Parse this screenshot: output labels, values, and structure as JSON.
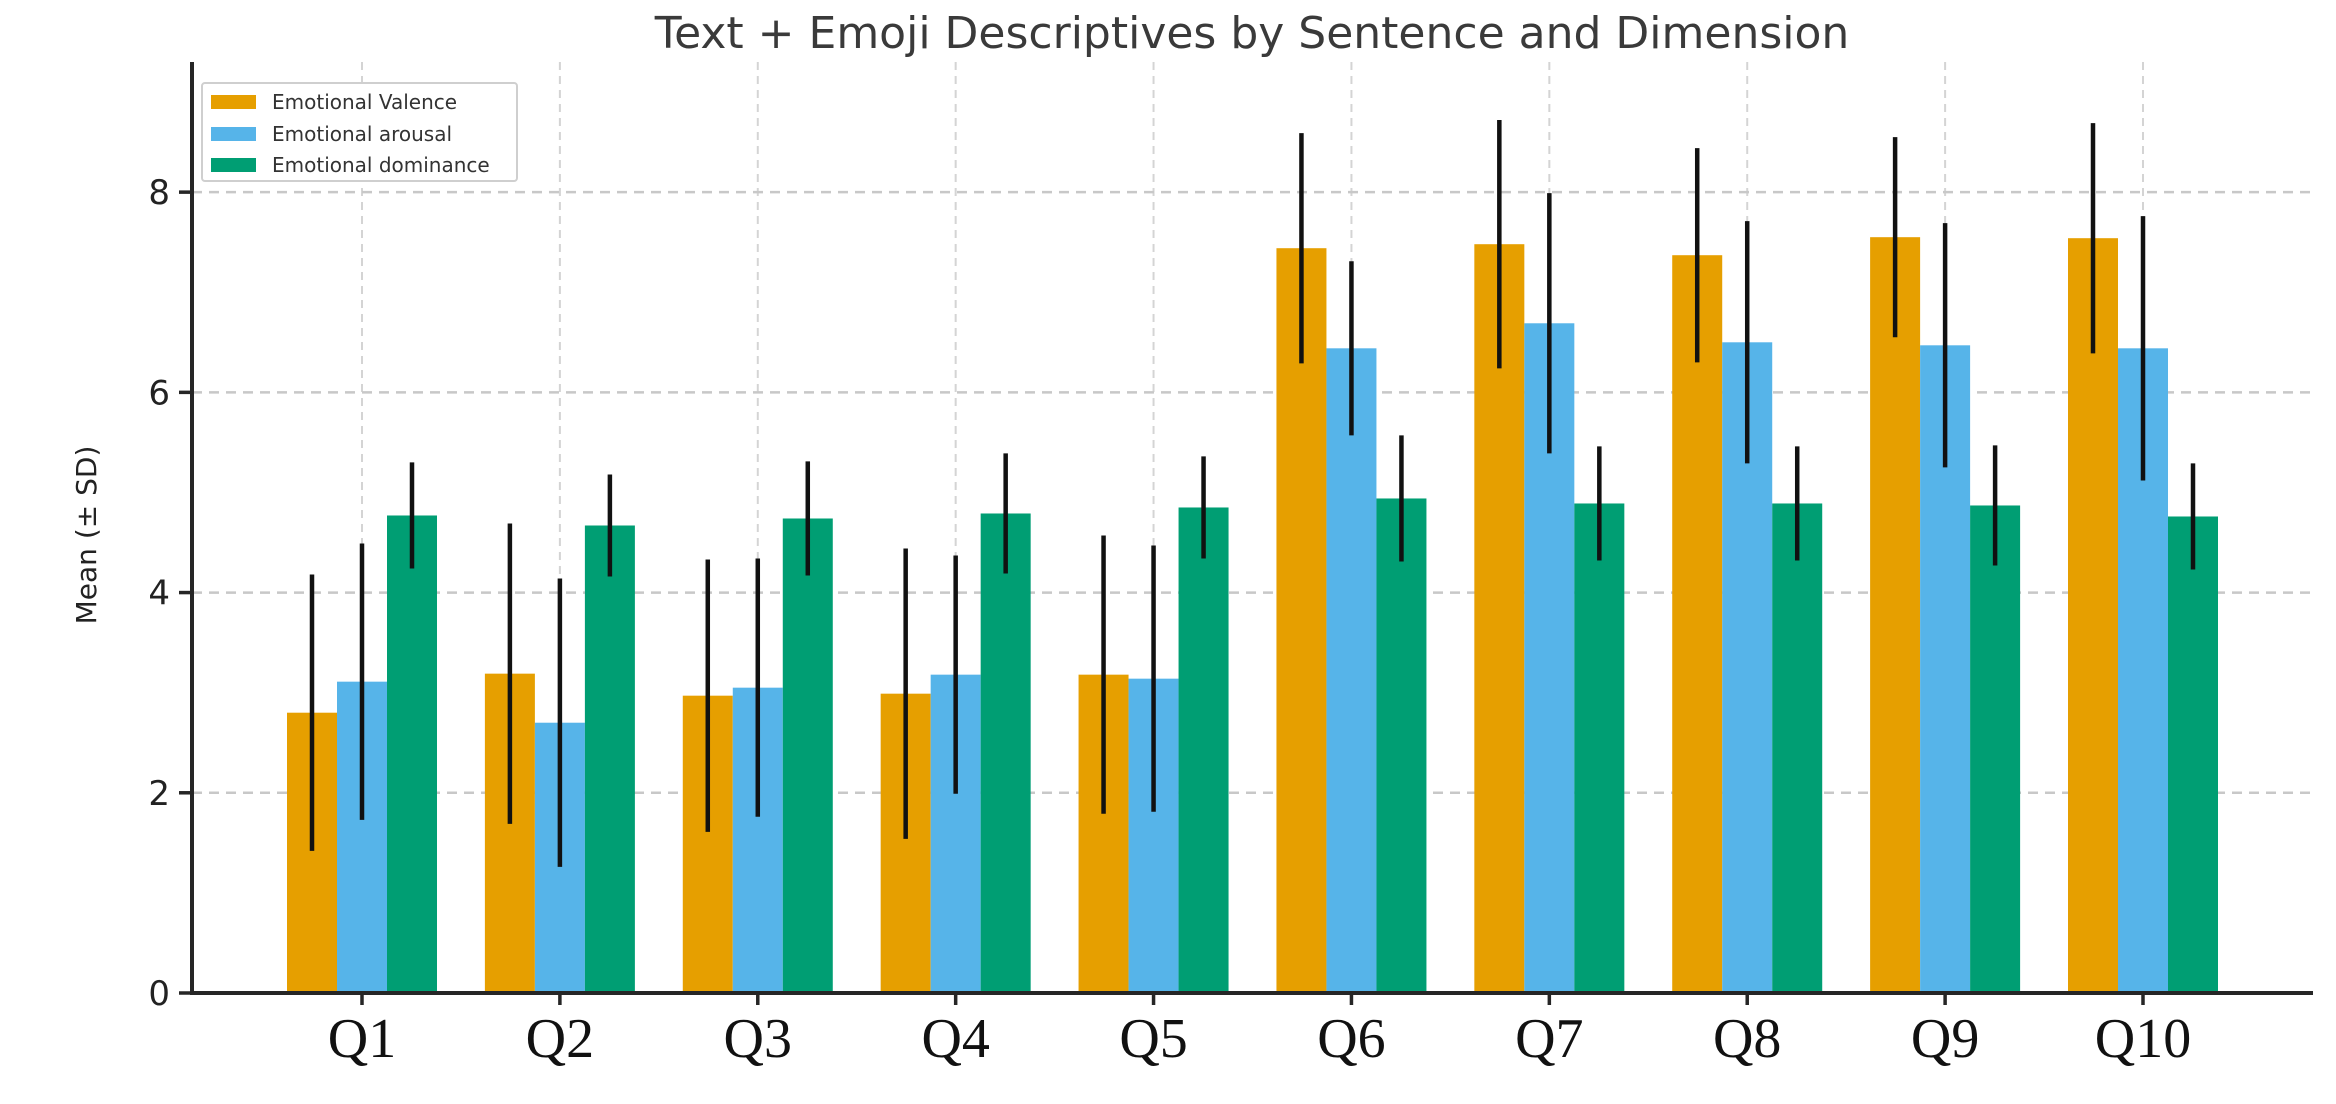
{
  "chart_data": {
    "type": "bar",
    "title": "Text + Emoji Descriptives by Sentence and Dimension",
    "xlabel": "",
    "ylabel": "Mean (± SD)",
    "categories": [
      "Q1",
      "Q2",
      "Q3",
      "Q4",
      "Q5",
      "Q6",
      "Q7",
      "Q8",
      "Q9",
      "Q10"
    ],
    "ylim": [
      0,
      9.3
    ],
    "yticks": [
      0,
      2,
      4,
      6,
      8
    ],
    "grid": {
      "horizontal": "dashed",
      "vertical": "dashed",
      "color": "#cccccc"
    },
    "legend": {
      "position": "upper left",
      "entries": [
        "Emotional Valence",
        "Emotional arousal",
        "Emotional dominance"
      ]
    },
    "error_bars": {
      "type": "± SD",
      "caps": false,
      "color": "#111111"
    },
    "series": [
      {
        "name": "Emotional Valence",
        "color": "#E69F00",
        "means": [
          2.8,
          3.19,
          2.97,
          2.99,
          3.18,
          7.44,
          7.48,
          7.37,
          7.55,
          7.54
        ],
        "sds": [
          1.38,
          1.5,
          1.36,
          1.45,
          1.39,
          1.15,
          1.24,
          1.07,
          1.0,
          1.15
        ]
      },
      {
        "name": "Emotional arousal",
        "color": "#56B4E9",
        "means": [
          3.11,
          2.7,
          3.05,
          3.18,
          3.14,
          6.44,
          6.69,
          6.5,
          6.47,
          6.44
        ],
        "sds": [
          1.38,
          1.44,
          1.29,
          1.19,
          1.33,
          0.87,
          1.3,
          1.21,
          1.22,
          1.32
        ]
      },
      {
        "name": "Emotional dominance",
        "color": "#009E73",
        "means": [
          4.77,
          4.67,
          4.74,
          4.79,
          4.85,
          4.94,
          4.89,
          4.89,
          4.87,
          4.76
        ],
        "sds": [
          0.53,
          0.51,
          0.57,
          0.6,
          0.51,
          0.63,
          0.57,
          0.57,
          0.6,
          0.53
        ]
      }
    ]
  }
}
